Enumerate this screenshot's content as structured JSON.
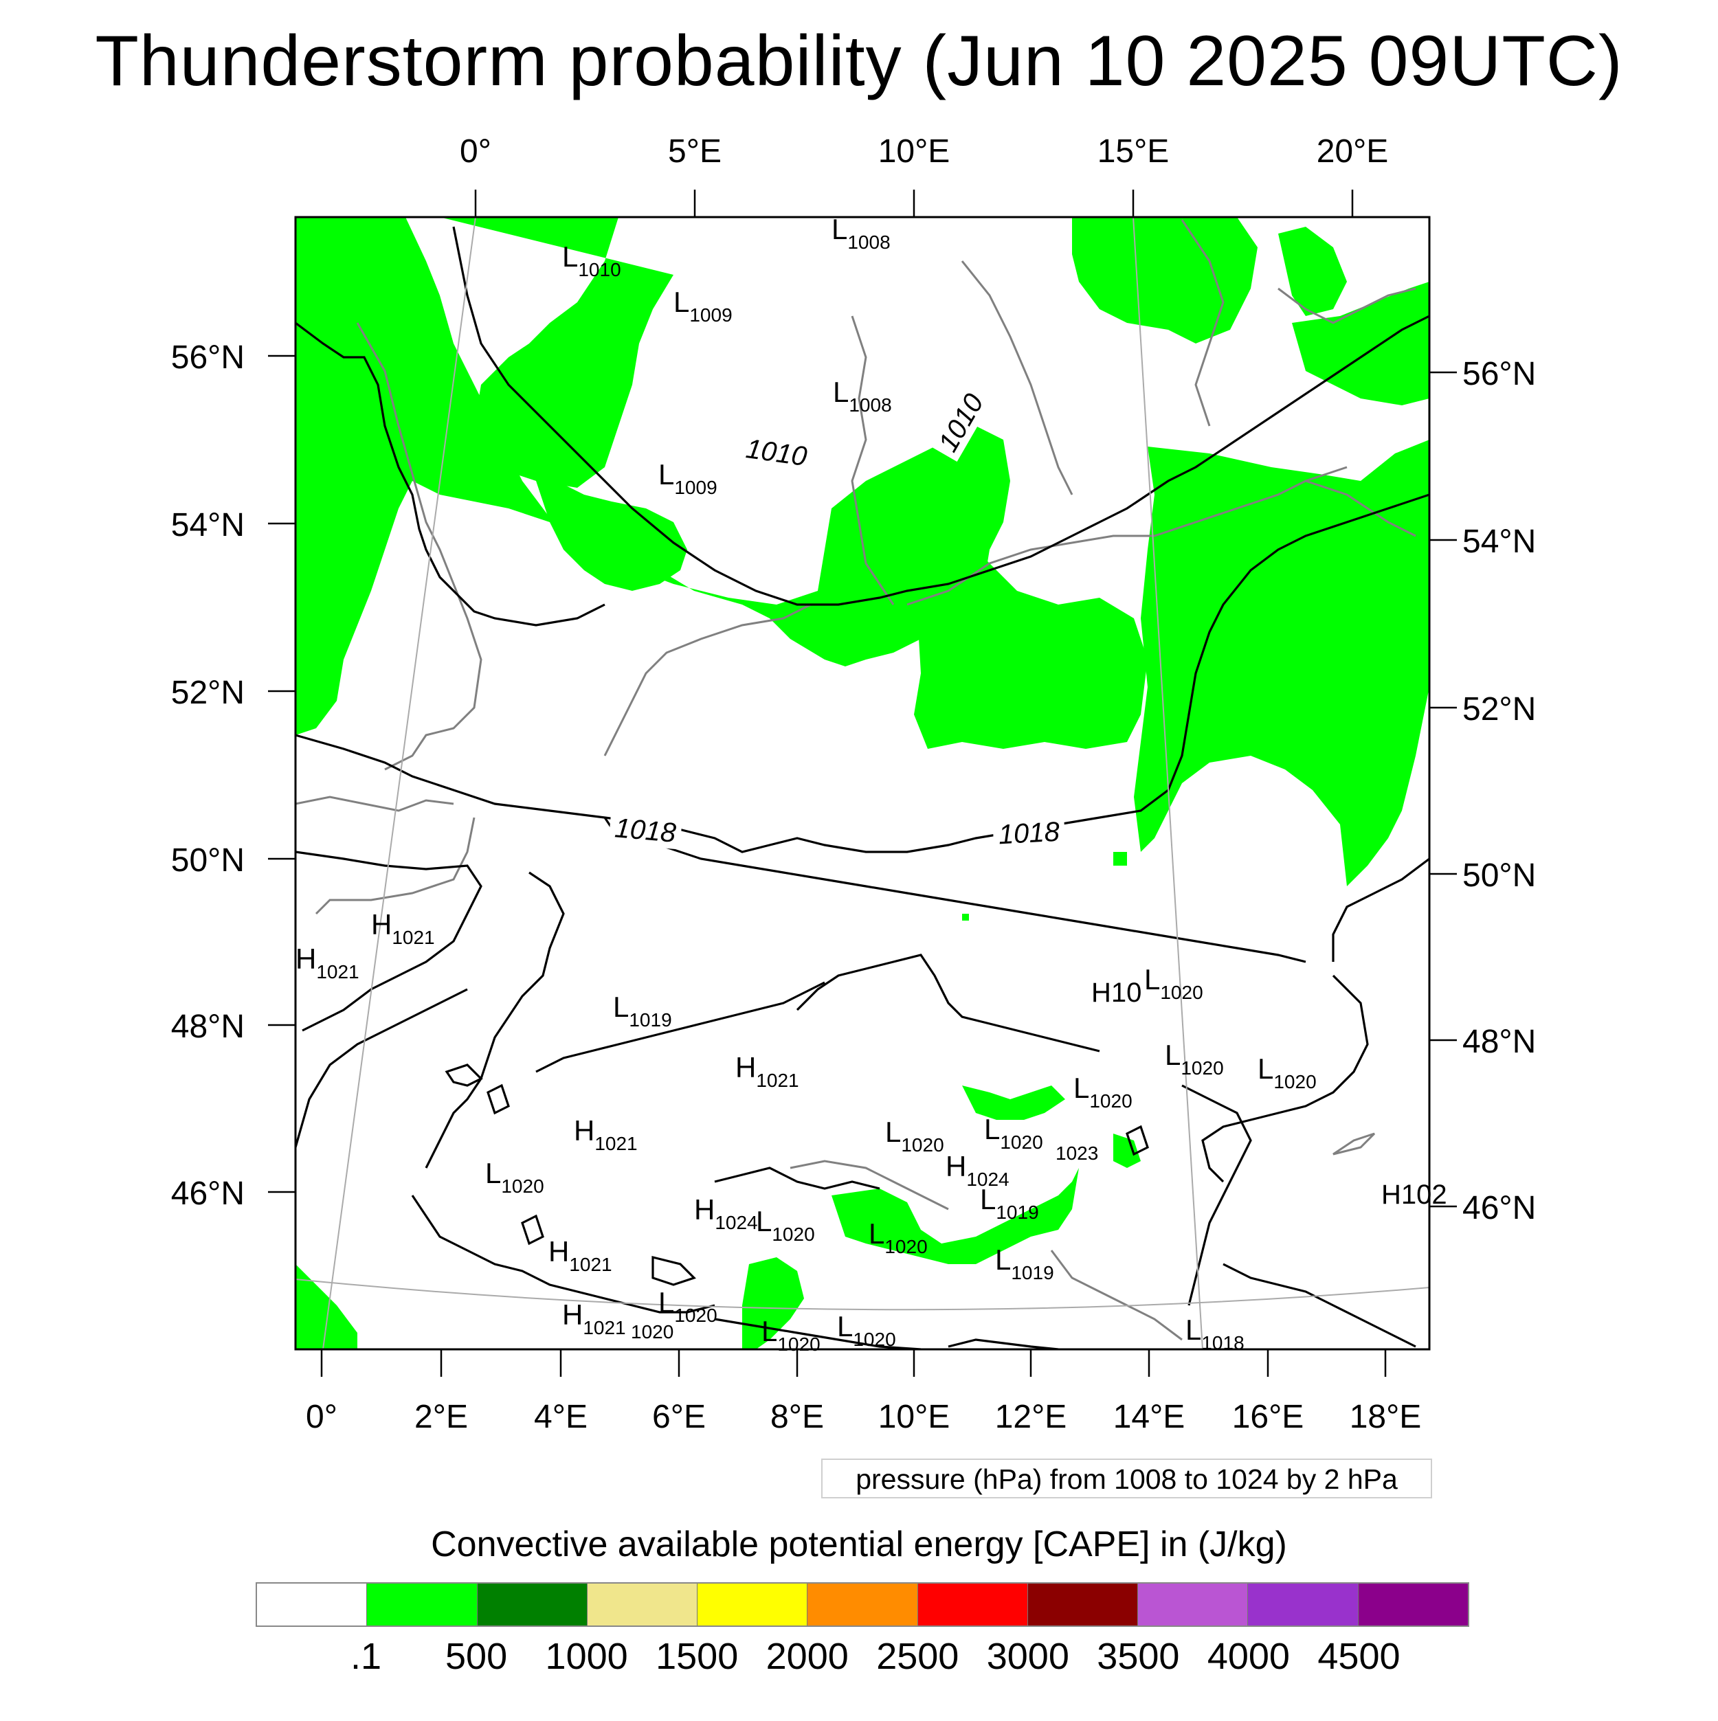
{
  "title": "Thunderstorm probability (Jun 10 2025 09UTC)",
  "map": {
    "top_lon_labels": [
      "0°",
      "5°E",
      "10°E",
      "15°E",
      "20°E"
    ],
    "bottom_lon_labels": [
      "0°",
      "2°E",
      "4°E",
      "6°E",
      "8°E",
      "10°E",
      "12°E",
      "14°E",
      "16°E",
      "18°E"
    ],
    "left_lat_labels": [
      "56°N",
      "54°N",
      "52°N",
      "50°N",
      "48°N",
      "46°N"
    ],
    "right_lat_labels": [
      "56°N",
      "54°N",
      "52°N",
      "50°N",
      "48°N",
      "46°N"
    ],
    "contour_labels": [
      "1010",
      "1010",
      "1018",
      "1018"
    ],
    "pressure_centers": [
      {
        "type": "L",
        "value": "1008"
      },
      {
        "type": "L",
        "value": "1010"
      },
      {
        "type": "L",
        "value": "1009"
      },
      {
        "type": "L",
        "value": "1008"
      },
      {
        "type": "L",
        "value": "1009"
      },
      {
        "type": "H",
        "value": "1021"
      },
      {
        "type": "H",
        "value": "1021"
      },
      {
        "type": "L",
        "value": "1019"
      },
      {
        "type": "H",
        "value": "1021"
      },
      {
        "type": "H",
        "value": "1021"
      },
      {
        "type": "L",
        "value": "1020"
      },
      {
        "type": "H",
        "value": "1021"
      },
      {
        "type": "H",
        "value": "1021"
      },
      {
        "type": "L",
        "value": "1020"
      },
      {
        "type": "L",
        "value": "1020"
      },
      {
        "type": "H",
        "value": "1024"
      },
      {
        "type": "L",
        "value": "1020"
      },
      {
        "type": "L",
        "value": "1020"
      },
      {
        "type": "L",
        "value": "1020"
      },
      {
        "type": "L",
        "value": "1020"
      },
      {
        "type": "L",
        "value": "1020"
      },
      {
        "type": "H",
        "value": "1024"
      },
      {
        "type": "L",
        "value": "1019"
      },
      {
        "type": "L",
        "value": "1019"
      },
      {
        "type": "L",
        "value": "1020"
      },
      {
        "type": "L",
        "value": "1020"
      },
      {
        "type": "L",
        "value": "1020"
      },
      {
        "type": "L",
        "value": "1020"
      },
      {
        "type": "L",
        "value": "1018"
      }
    ],
    "partial_labels": [
      "H10",
      "1023",
      "1020",
      "H102"
    ],
    "colors": {
      "cape_green": "#00ff00",
      "isobar": "#000000",
      "coast": "#808080"
    }
  },
  "contour_note": "pressure (hPa) from 1008 to 1024 by 2 hPa",
  "colorbar": {
    "title": "Convective available potential energy [CAPE] in (J/kg)",
    "colors": [
      "#ffffff",
      "#00ff00",
      "#008000",
      "#f0e68c",
      "#ffff00",
      "#ff8c00",
      "#ff0000",
      "#8b0000",
      "#ba55d3",
      "#9932cc",
      "#8b008b"
    ],
    "tick_labels": [
      ".1",
      "500",
      "1000",
      "1500",
      "2000",
      "2500",
      "3000",
      "3500",
      "4000",
      "4500"
    ]
  }
}
